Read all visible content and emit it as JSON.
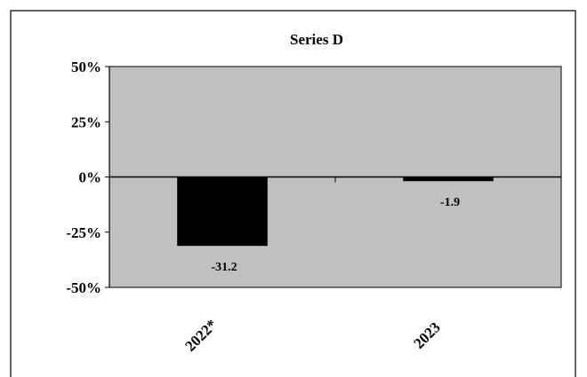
{
  "chart_data": {
    "type": "bar",
    "title": "Series D",
    "categories": [
      "2022*",
      "2023"
    ],
    "values": [
      -31.2,
      -1.9
    ],
    "data_labels": [
      "-31.2",
      "-1.9"
    ],
    "ylim": [
      -50,
      50
    ],
    "yticks": [
      50,
      25,
      0,
      -25,
      -50
    ],
    "ytick_labels": [
      "50%",
      "25%",
      "0%",
      "-25%",
      "-50%"
    ],
    "xlabel": "",
    "ylabel": "",
    "grid": false,
    "legend": "none",
    "colors": {
      "plot_background": "#c0c0c0",
      "bar": "#000000",
      "page_background": "#ffffff"
    }
  }
}
